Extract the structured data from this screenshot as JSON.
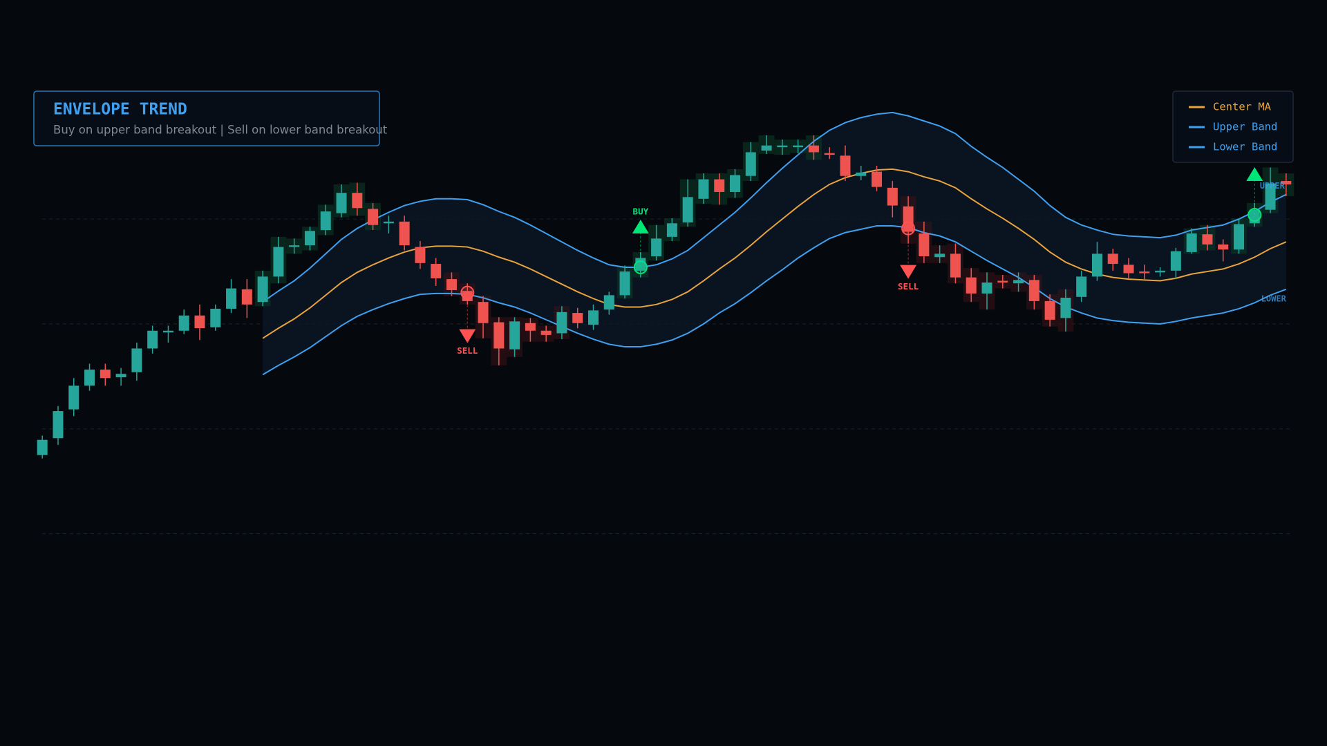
{
  "chart_data": {
    "type": "candlestick",
    "title": "ENVELOPE TREND",
    "subtitle": "Buy on upper band breakout | Sell on lower band breakout",
    "open": [
      217,
      237,
      271,
      299,
      318,
      309,
      315,
      343,
      362,
      364,
      382,
      368,
      390,
      413,
      398,
      428,
      463,
      465,
      483,
      503,
      527,
      508,
      491,
      493,
      463,
      443,
      425,
      411,
      398,
      374,
      342,
      373,
      364,
      361,
      385,
      371,
      389,
      406,
      435,
      452,
      475,
      492,
      520,
      543,
      528,
      547,
      577,
      581,
      581,
      583,
      574,
      571,
      547,
      552,
      533,
      511,
      479,
      451,
      455,
      427,
      408,
      423,
      420,
      424,
      399,
      379,
      404,
      428,
      455,
      442,
      434,
      433,
      435,
      457,
      478,
      466,
      460,
      491,
      507,
      541
    ],
    "high": [
      240,
      275,
      308,
      325,
      325,
      320,
      350,
      370,
      370,
      389,
      395,
      395,
      425,
      425,
      435,
      475,
      473,
      487,
      513,
      537,
      539,
      515,
      500,
      500,
      470,
      450,
      433,
      420,
      405,
      380,
      380,
      379,
      370,
      393,
      391,
      395,
      410,
      441,
      457,
      489,
      497,
      543,
      550,
      550,
      555,
      587,
      595,
      590,
      590,
      595,
      581,
      583,
      559,
      559,
      541,
      523,
      493,
      465,
      467,
      438,
      433,
      430,
      433,
      430,
      407,
      413,
      435,
      469,
      461,
      450,
      442,
      439,
      462,
      485,
      489,
      472,
      497,
      515,
      557,
      550
    ],
    "low": [
      213,
      229,
      263,
      293,
      299,
      299,
      305,
      337,
      350,
      360,
      353,
      364,
      385,
      379,
      393,
      420,
      455,
      459,
      477,
      498,
      500,
      483,
      479,
      459,
      437,
      417,
      405,
      395,
      355,
      323,
      333,
      351,
      351,
      354,
      367,
      365,
      383,
      402,
      427,
      447,
      470,
      487,
      514,
      513,
      521,
      541,
      573,
      572,
      574,
      566,
      567,
      541,
      542,
      529,
      498,
      467,
      444,
      444,
      420,
      398,
      389,
      414,
      410,
      389,
      369,
      363,
      398,
      423,
      435,
      425,
      425,
      428,
      425,
      455,
      459,
      446,
      455,
      487,
      503,
      523
    ],
    "close": [
      235,
      269,
      299,
      318,
      308,
      313,
      343,
      364,
      364,
      382,
      367,
      390,
      414,
      395,
      428,
      463,
      465,
      482,
      505,
      527,
      509,
      489,
      493,
      465,
      444,
      426,
      412,
      399,
      373,
      343,
      375,
      364,
      359,
      386,
      373,
      388,
      406,
      434,
      450,
      473,
      491,
      522,
      543,
      528,
      548,
      575,
      583,
      583,
      583,
      575,
      572,
      547,
      551,
      534,
      512,
      481,
      452,
      455,
      427,
      408,
      421,
      421,
      424,
      399,
      377,
      403,
      428,
      455,
      443,
      432,
      432,
      435,
      458,
      479,
      466,
      460,
      490,
      507,
      538,
      537
    ],
    "up_color": "#26a69a",
    "down_color": "#ef5350",
    "series": [
      {
        "name": "Center MA",
        "color": "#e8a33d",
        "values": [
          null,
          null,
          null,
          null,
          null,
          null,
          null,
          null,
          null,
          null,
          null,
          null,
          null,
          null,
          355,
          367,
          378,
          391,
          406,
          421,
          433,
          442,
          450,
          457,
          462,
          464,
          464,
          463,
          458,
          451,
          445,
          437,
          428,
          419,
          410,
          402,
          395,
          392,
          392,
          395,
          401,
          410,
          423,
          437,
          450,
          465,
          481,
          496,
          511,
          525,
          537,
          545,
          550,
          554,
          555,
          552,
          546,
          541,
          533,
          520,
          508,
          497,
          485,
          472,
          457,
          445,
          437,
          431,
          427,
          425,
          424,
          423,
          426,
          431,
          434,
          437,
          443,
          451,
          461,
          469
        ]
      },
      {
        "name": "Upper Band",
        "color": "#3fa0f0",
        "values": [
          null,
          null,
          null,
          null,
          null,
          null,
          null,
          null,
          null,
          null,
          null,
          null,
          null,
          null,
          398,
          411,
          423,
          438,
          455,
          472,
          485,
          495,
          504,
          512,
          517,
          520,
          520,
          519,
          513,
          505,
          498,
          489,
          479,
          469,
          459,
          450,
          442,
          439,
          439,
          442,
          449,
          459,
          474,
          489,
          504,
          521,
          539,
          556,
          572,
          588,
          601,
          610,
          616,
          620,
          622,
          618,
          612,
          606,
          597,
          582,
          569,
          557,
          543,
          529,
          512,
          498,
          489,
          483,
          478,
          476,
          475,
          474,
          477,
          483,
          486,
          489,
          496,
          505,
          516,
          525
        ]
      },
      {
        "name": "Lower Band",
        "color": "#3fa0f0",
        "values": [
          null,
          null,
          null,
          null,
          null,
          null,
          null,
          null,
          null,
          null,
          null,
          null,
          null,
          null,
          312,
          323,
          333,
          344,
          357,
          370,
          381,
          389,
          396,
          402,
          407,
          408,
          408,
          407,
          403,
          397,
          392,
          385,
          377,
          369,
          361,
          354,
          348,
          345,
          345,
          348,
          353,
          361,
          372,
          385,
          396,
          409,
          423,
          436,
          450,
          462,
          473,
          480,
          484,
          488,
          488,
          486,
          480,
          476,
          469,
          458,
          447,
          437,
          427,
          415,
          402,
          392,
          385,
          379,
          376,
          374,
          373,
          372,
          375,
          379,
          382,
          385,
          390,
          397,
          406,
          413
        ]
      }
    ],
    "band_fill": "#0c1624",
    "band_labels": {
      "upper": "UPPER",
      "lower": "LOWER"
    },
    "signals": [
      {
        "label": "SELL",
        "index": 27,
        "value": 409,
        "color": "#ff5252"
      },
      {
        "label": "BUY",
        "index": 38,
        "value": 439,
        "color": "#00e676"
      },
      {
        "label": "SELL",
        "index": 55,
        "value": 485,
        "color": "#ff5252"
      },
      {
        "label": "BUY",
        "index": 77,
        "value": 501,
        "color": "#00e676"
      }
    ],
    "ylim": [
      0,
      682
    ],
    "yticks": [
      124,
      248,
      372,
      496
    ],
    "grid": true,
    "legend": "top-right"
  }
}
